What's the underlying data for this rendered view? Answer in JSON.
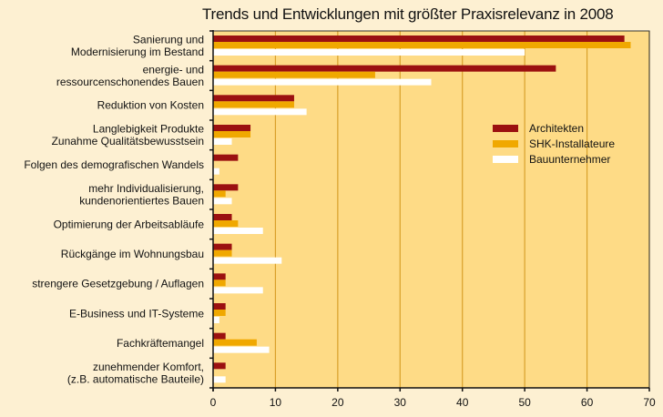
{
  "chart_data": {
    "type": "bar",
    "orientation": "horizontal",
    "title": "Trends und Entwicklungen mit größter Praxisrelevanz in 2008",
    "xlabel": "",
    "ylabel": "",
    "xlim": [
      0,
      70
    ],
    "xticks": [
      0,
      10,
      20,
      30,
      40,
      50,
      60,
      70
    ],
    "grid": "vertical",
    "legend_position": "right-upper",
    "categories": [
      [
        "Sanierung und",
        "Modernisierung im Bestand"
      ],
      [
        "energie- und",
        "ressourcenschonendes Bauen"
      ],
      [
        "Reduktion von Kosten"
      ],
      [
        "Langlebigkeit Produkte",
        "Zunahme Qualitätsbewusstsein"
      ],
      [
        "Folgen des demografischen Wandels"
      ],
      [
        "mehr Individualisierung,",
        "kundenorientiertes Bauen"
      ],
      [
        "Optimierung der Arbeitsabläufe"
      ],
      [
        "Rückgänge im Wohnungsbau"
      ],
      [
        "strengere Gesetzgebung / Auflagen"
      ],
      [
        "E-Business und IT-Systeme"
      ],
      [
        "Fachkräftemangel"
      ],
      [
        "zunehmender Komfort,",
        "(z.B. automatische Bauteile)"
      ]
    ],
    "series": [
      {
        "name": "Architekten",
        "color": "#9b1010",
        "values": [
          66,
          55,
          13,
          6,
          4,
          4,
          3,
          3,
          2,
          2,
          2,
          2
        ]
      },
      {
        "name": "SHK-Installateure",
        "color": "#f0a800",
        "values": [
          67,
          26,
          13,
          6,
          0,
          2,
          4,
          3,
          2,
          2,
          7,
          0
        ]
      },
      {
        "name": "Bauunternehmer",
        "color": "#ffffff",
        "values": [
          50,
          35,
          15,
          3,
          1,
          3,
          8,
          11,
          8,
          1,
          9,
          2
        ]
      }
    ]
  },
  "colors": {
    "page_background": "#fdf0d2",
    "plot_background": "#fedb86",
    "gridline": "#d9a02a"
  }
}
